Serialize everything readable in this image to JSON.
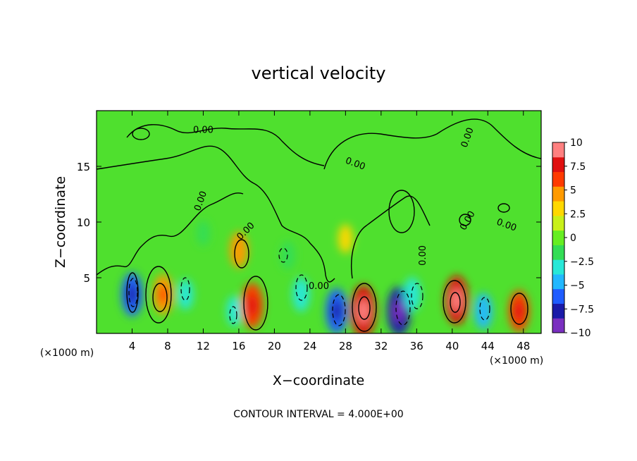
{
  "chart_data": {
    "type": "heatmap",
    "title": "vertical velocity",
    "xlabel": "X−coordinate",
    "ylabel": "Z−coordinate",
    "x_unit_left": "(×1000 m)",
    "x_unit_right": "(×1000 m)",
    "x_ticks": [
      4,
      8,
      12,
      16,
      20,
      24,
      28,
      32,
      36,
      40,
      44,
      48
    ],
    "y_ticks": [
      5,
      10,
      15
    ],
    "xlim": [
      0,
      50
    ],
    "ylim": [
      0,
      20
    ],
    "colorbar": {
      "tick_values": [
        10,
        7.5,
        5,
        2.5,
        0,
        -2.5,
        -5,
        -7.5,
        -10
      ],
      "tick_labels": [
        "10",
        "7.5",
        "5",
        "2.5",
        "0",
        "−2.5",
        "−5",
        "−7.5",
        "−10"
      ],
      "min": -10,
      "max": 10,
      "colors": [
        "#7a2fc0",
        "#1a1aa8",
        "#1f5cff",
        "#22b8ff",
        "#28e8d8",
        "#33dd55",
        "#66ee22",
        "#c8f01a",
        "#ffd800",
        "#ff9a00",
        "#ff3a00",
        "#e01010",
        "#ff8080"
      ]
    },
    "contour_label": "0.00",
    "contour_interval_text": "CONTOUR INTERVAL = 4.000E+00",
    "cells": [
      {
        "x": 4,
        "z": 3.5,
        "w": -6.5
      },
      {
        "x": 7.5,
        "z": 3.5,
        "w": 5.5
      },
      {
        "x": 10,
        "z": 3.5,
        "w": -3
      },
      {
        "x": 15.5,
        "z": 2,
        "w": -3
      },
      {
        "x": 16,
        "z": 7.5,
        "w": 4.5
      },
      {
        "x": 17.5,
        "z": 2.5,
        "w": 7
      },
      {
        "x": 21.5,
        "z": 7,
        "w": -2.5
      },
      {
        "x": 23,
        "z": 3.5,
        "w": -4
      },
      {
        "x": 27,
        "z": 2,
        "w": -7
      },
      {
        "x": 30,
        "z": 2,
        "w": 9
      },
      {
        "x": 34,
        "z": 2,
        "w": -8
      },
      {
        "x": 35.5,
        "z": 3.5,
        "w": -4
      },
      {
        "x": 40.5,
        "z": 3,
        "w": 8
      },
      {
        "x": 43.5,
        "z": 2,
        "w": -4.5
      },
      {
        "x": 47.5,
        "z": 2,
        "w": 6
      },
      {
        "x": 28,
        "z": 8.5,
        "w": 2.5
      },
      {
        "x": 12,
        "z": 9,
        "w": -1.5
      }
    ]
  }
}
